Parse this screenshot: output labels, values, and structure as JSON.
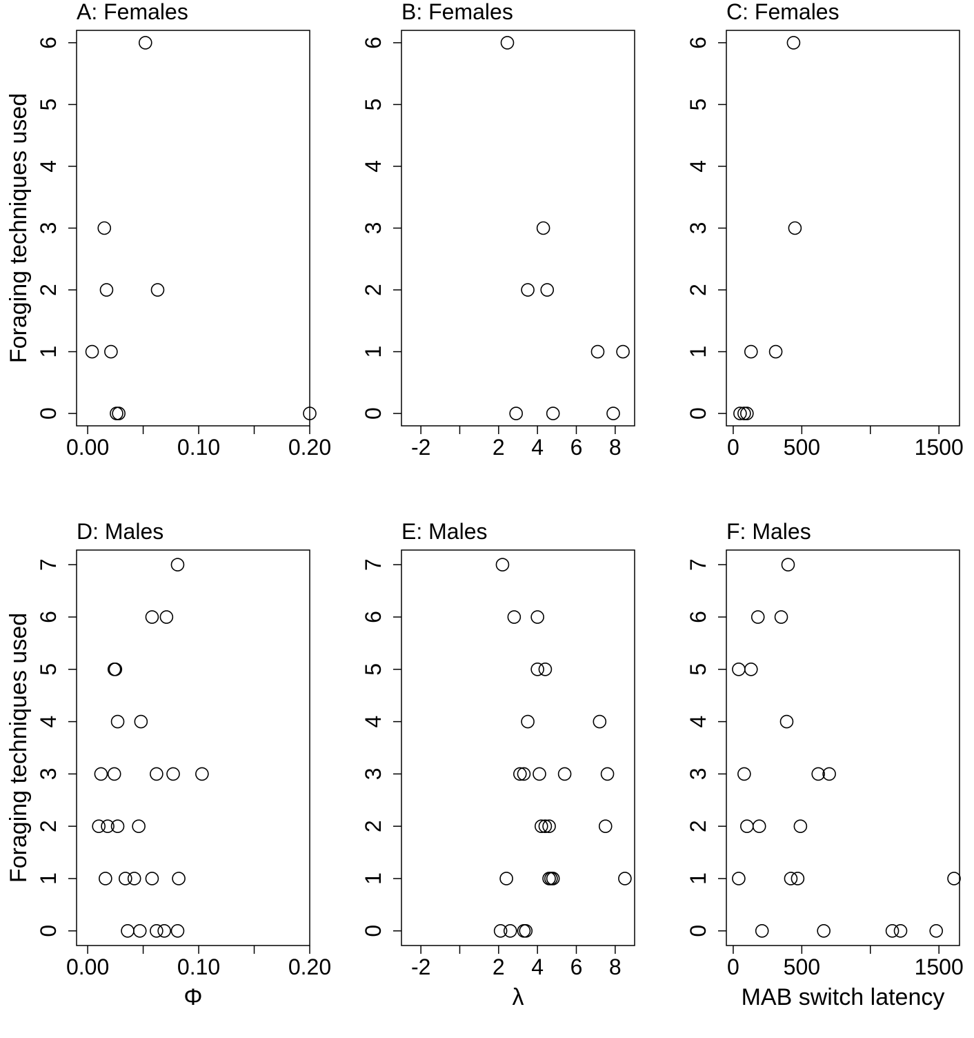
{
  "chart_data": [
    {
      "type": "scatter",
      "title": "A: Females",
      "ylabel": "Foraging techniques used",
      "xlabel": "",
      "xlim": [
        -0.01,
        0.2
      ],
      "ylim": [
        -0.2,
        6.2
      ],
      "xticks": [
        0.0,
        0.05,
        0.1,
        0.15,
        0.2
      ],
      "xtick_labels": [
        "0.00",
        "",
        "0.10",
        "",
        "0.20"
      ],
      "yticks": [
        0,
        1,
        2,
        3,
        4,
        5,
        6
      ],
      "ytick_labels": [
        "0",
        "1",
        "2",
        "3",
        "4",
        "5",
        "6"
      ],
      "points": [
        {
          "x": 0.052,
          "y": 6
        },
        {
          "x": 0.015,
          "y": 3
        },
        {
          "x": 0.017,
          "y": 2
        },
        {
          "x": 0.063,
          "y": 2
        },
        {
          "x": 0.004,
          "y": 1
        },
        {
          "x": 0.021,
          "y": 1
        },
        {
          "x": 0.026,
          "y": 0
        },
        {
          "x": 0.028,
          "y": 0
        },
        {
          "x": 0.2,
          "y": 0
        }
      ]
    },
    {
      "type": "scatter",
      "title": "B: Females",
      "ylabel": "",
      "xlabel": "",
      "xlim": [
        -3,
        9
      ],
      "ylim": [
        -0.2,
        6.2
      ],
      "xticks": [
        -2,
        0,
        2,
        4,
        6,
        8
      ],
      "xtick_labels": [
        "-2",
        "",
        "2",
        "4",
        "6",
        "8"
      ],
      "yticks": [
        0,
        1,
        2,
        3,
        4,
        5,
        6
      ],
      "ytick_labels": [
        "0",
        "1",
        "2",
        "3",
        "4",
        "5",
        "6"
      ],
      "points": [
        {
          "x": 2.45,
          "y": 6
        },
        {
          "x": 4.3,
          "y": 3
        },
        {
          "x": 3.5,
          "y": 2
        },
        {
          "x": 4.5,
          "y": 2
        },
        {
          "x": 7.1,
          "y": 1
        },
        {
          "x": 8.4,
          "y": 1
        },
        {
          "x": 2.9,
          "y": 0
        },
        {
          "x": 4.8,
          "y": 0
        },
        {
          "x": 7.9,
          "y": 0
        }
      ]
    },
    {
      "type": "scatter",
      "title": "C: Females",
      "ylabel": "",
      "xlabel": "",
      "xlim": [
        -50,
        1650
      ],
      "ylim": [
        -0.2,
        6.2
      ],
      "xticks": [
        0,
        500,
        1000,
        1500
      ],
      "xtick_labels": [
        "0",
        "500",
        "",
        "1500"
      ],
      "yticks": [
        0,
        1,
        2,
        3,
        4,
        5,
        6
      ],
      "ytick_labels": [
        "0",
        "1",
        "2",
        "3",
        "4",
        "5",
        "6"
      ],
      "points": [
        {
          "x": 440,
          "y": 6
        },
        {
          "x": 450,
          "y": 3
        },
        {
          "x": 130,
          "y": 1
        },
        {
          "x": 310,
          "y": 1
        },
        {
          "x": 50,
          "y": 0
        },
        {
          "x": 80,
          "y": 0
        },
        {
          "x": 100,
          "y": 0
        }
      ]
    },
    {
      "type": "scatter",
      "title": "D: Males",
      "ylabel": "Foraging techniques used",
      "xlabel": "Φ",
      "xlim": [
        -0.01,
        0.2
      ],
      "ylim": [
        -0.28,
        7.28
      ],
      "xticks": [
        0.0,
        0.05,
        0.1,
        0.15,
        0.2
      ],
      "xtick_labels": [
        "0.00",
        "",
        "0.10",
        "",
        "0.20"
      ],
      "yticks": [
        0,
        1,
        2,
        3,
        4,
        5,
        6,
        7
      ],
      "ytick_labels": [
        "0",
        "1",
        "2",
        "3",
        "4",
        "5",
        "6",
        "7"
      ],
      "points": [
        {
          "x": 0.081,
          "y": 7
        },
        {
          "x": 0.058,
          "y": 6
        },
        {
          "x": 0.071,
          "y": 6
        },
        {
          "x": 0.024,
          "y": 5
        },
        {
          "x": 0.025,
          "y": 5
        },
        {
          "x": 0.027,
          "y": 4
        },
        {
          "x": 0.048,
          "y": 4
        },
        {
          "x": 0.012,
          "y": 3
        },
        {
          "x": 0.024,
          "y": 3
        },
        {
          "x": 0.062,
          "y": 3
        },
        {
          "x": 0.077,
          "y": 3
        },
        {
          "x": 0.103,
          "y": 3
        },
        {
          "x": 0.01,
          "y": 2
        },
        {
          "x": 0.018,
          "y": 2
        },
        {
          "x": 0.027,
          "y": 2
        },
        {
          "x": 0.046,
          "y": 2
        },
        {
          "x": 0.016,
          "y": 1
        },
        {
          "x": 0.034,
          "y": 1
        },
        {
          "x": 0.042,
          "y": 1
        },
        {
          "x": 0.058,
          "y": 1
        },
        {
          "x": 0.082,
          "y": 1
        },
        {
          "x": 0.036,
          "y": 0
        },
        {
          "x": 0.047,
          "y": 0
        },
        {
          "x": 0.062,
          "y": 0
        },
        {
          "x": 0.069,
          "y": 0
        },
        {
          "x": 0.081,
          "y": 0
        }
      ]
    },
    {
      "type": "scatter",
      "title": "E: Males",
      "ylabel": "",
      "xlabel": "λ",
      "xlim": [
        -3,
        9
      ],
      "ylim": [
        -0.28,
        7.28
      ],
      "xticks": [
        -2,
        0,
        2,
        4,
        6,
        8
      ],
      "xtick_labels": [
        "-2",
        "",
        "2",
        "4",
        "6",
        "8"
      ],
      "yticks": [
        0,
        1,
        2,
        3,
        4,
        5,
        6,
        7
      ],
      "ytick_labels": [
        "0",
        "1",
        "2",
        "3",
        "4",
        "5",
        "6",
        "7"
      ],
      "points": [
        {
          "x": 2.2,
          "y": 7
        },
        {
          "x": 2.8,
          "y": 6
        },
        {
          "x": 4.0,
          "y": 6
        },
        {
          "x": 4.0,
          "y": 5
        },
        {
          "x": 4.4,
          "y": 5
        },
        {
          "x": 3.5,
          "y": 4
        },
        {
          "x": 7.2,
          "y": 4
        },
        {
          "x": 3.1,
          "y": 3
        },
        {
          "x": 3.3,
          "y": 3
        },
        {
          "x": 4.1,
          "y": 3
        },
        {
          "x": 5.4,
          "y": 3
        },
        {
          "x": 7.6,
          "y": 3
        },
        {
          "x": 4.2,
          "y": 2
        },
        {
          "x": 4.4,
          "y": 2
        },
        {
          "x": 4.6,
          "y": 2
        },
        {
          "x": 7.5,
          "y": 2
        },
        {
          "x": 2.4,
          "y": 1
        },
        {
          "x": 4.6,
          "y": 1
        },
        {
          "x": 4.7,
          "y": 1
        },
        {
          "x": 4.8,
          "y": 1
        },
        {
          "x": 8.5,
          "y": 1
        },
        {
          "x": 2.1,
          "y": 0
        },
        {
          "x": 2.6,
          "y": 0
        },
        {
          "x": 3.3,
          "y": 0
        },
        {
          "x": 3.4,
          "y": 0
        }
      ]
    },
    {
      "type": "scatter",
      "title": "F: Males",
      "ylabel": "",
      "xlabel": "MAB switch latency",
      "xlim": [
        -50,
        1650
      ],
      "ylim": [
        -0.28,
        7.28
      ],
      "xticks": [
        0,
        500,
        1000,
        1500
      ],
      "xtick_labels": [
        "0",
        "500",
        "",
        "1500"
      ],
      "yticks": [
        0,
        1,
        2,
        3,
        4,
        5,
        6,
        7
      ],
      "ytick_labels": [
        "0",
        "1",
        "2",
        "3",
        "4",
        "5",
        "6",
        "7"
      ],
      "points": [
        {
          "x": 400,
          "y": 7
        },
        {
          "x": 180,
          "y": 6
        },
        {
          "x": 350,
          "y": 6
        },
        {
          "x": 40,
          "y": 5
        },
        {
          "x": 130,
          "y": 5
        },
        {
          "x": 390,
          "y": 4
        },
        {
          "x": 80,
          "y": 3
        },
        {
          "x": 620,
          "y": 3
        },
        {
          "x": 700,
          "y": 3
        },
        {
          "x": 100,
          "y": 2
        },
        {
          "x": 190,
          "y": 2
        },
        {
          "x": 490,
          "y": 2
        },
        {
          "x": 40,
          "y": 1
        },
        {
          "x": 420,
          "y": 1
        },
        {
          "x": 470,
          "y": 1
        },
        {
          "x": 1610,
          "y": 1
        },
        {
          "x": 210,
          "y": 0
        },
        {
          "x": 660,
          "y": 0
        },
        {
          "x": 1160,
          "y": 0
        },
        {
          "x": 1220,
          "y": 0
        },
        {
          "x": 1480,
          "y": 0
        }
      ]
    }
  ]
}
